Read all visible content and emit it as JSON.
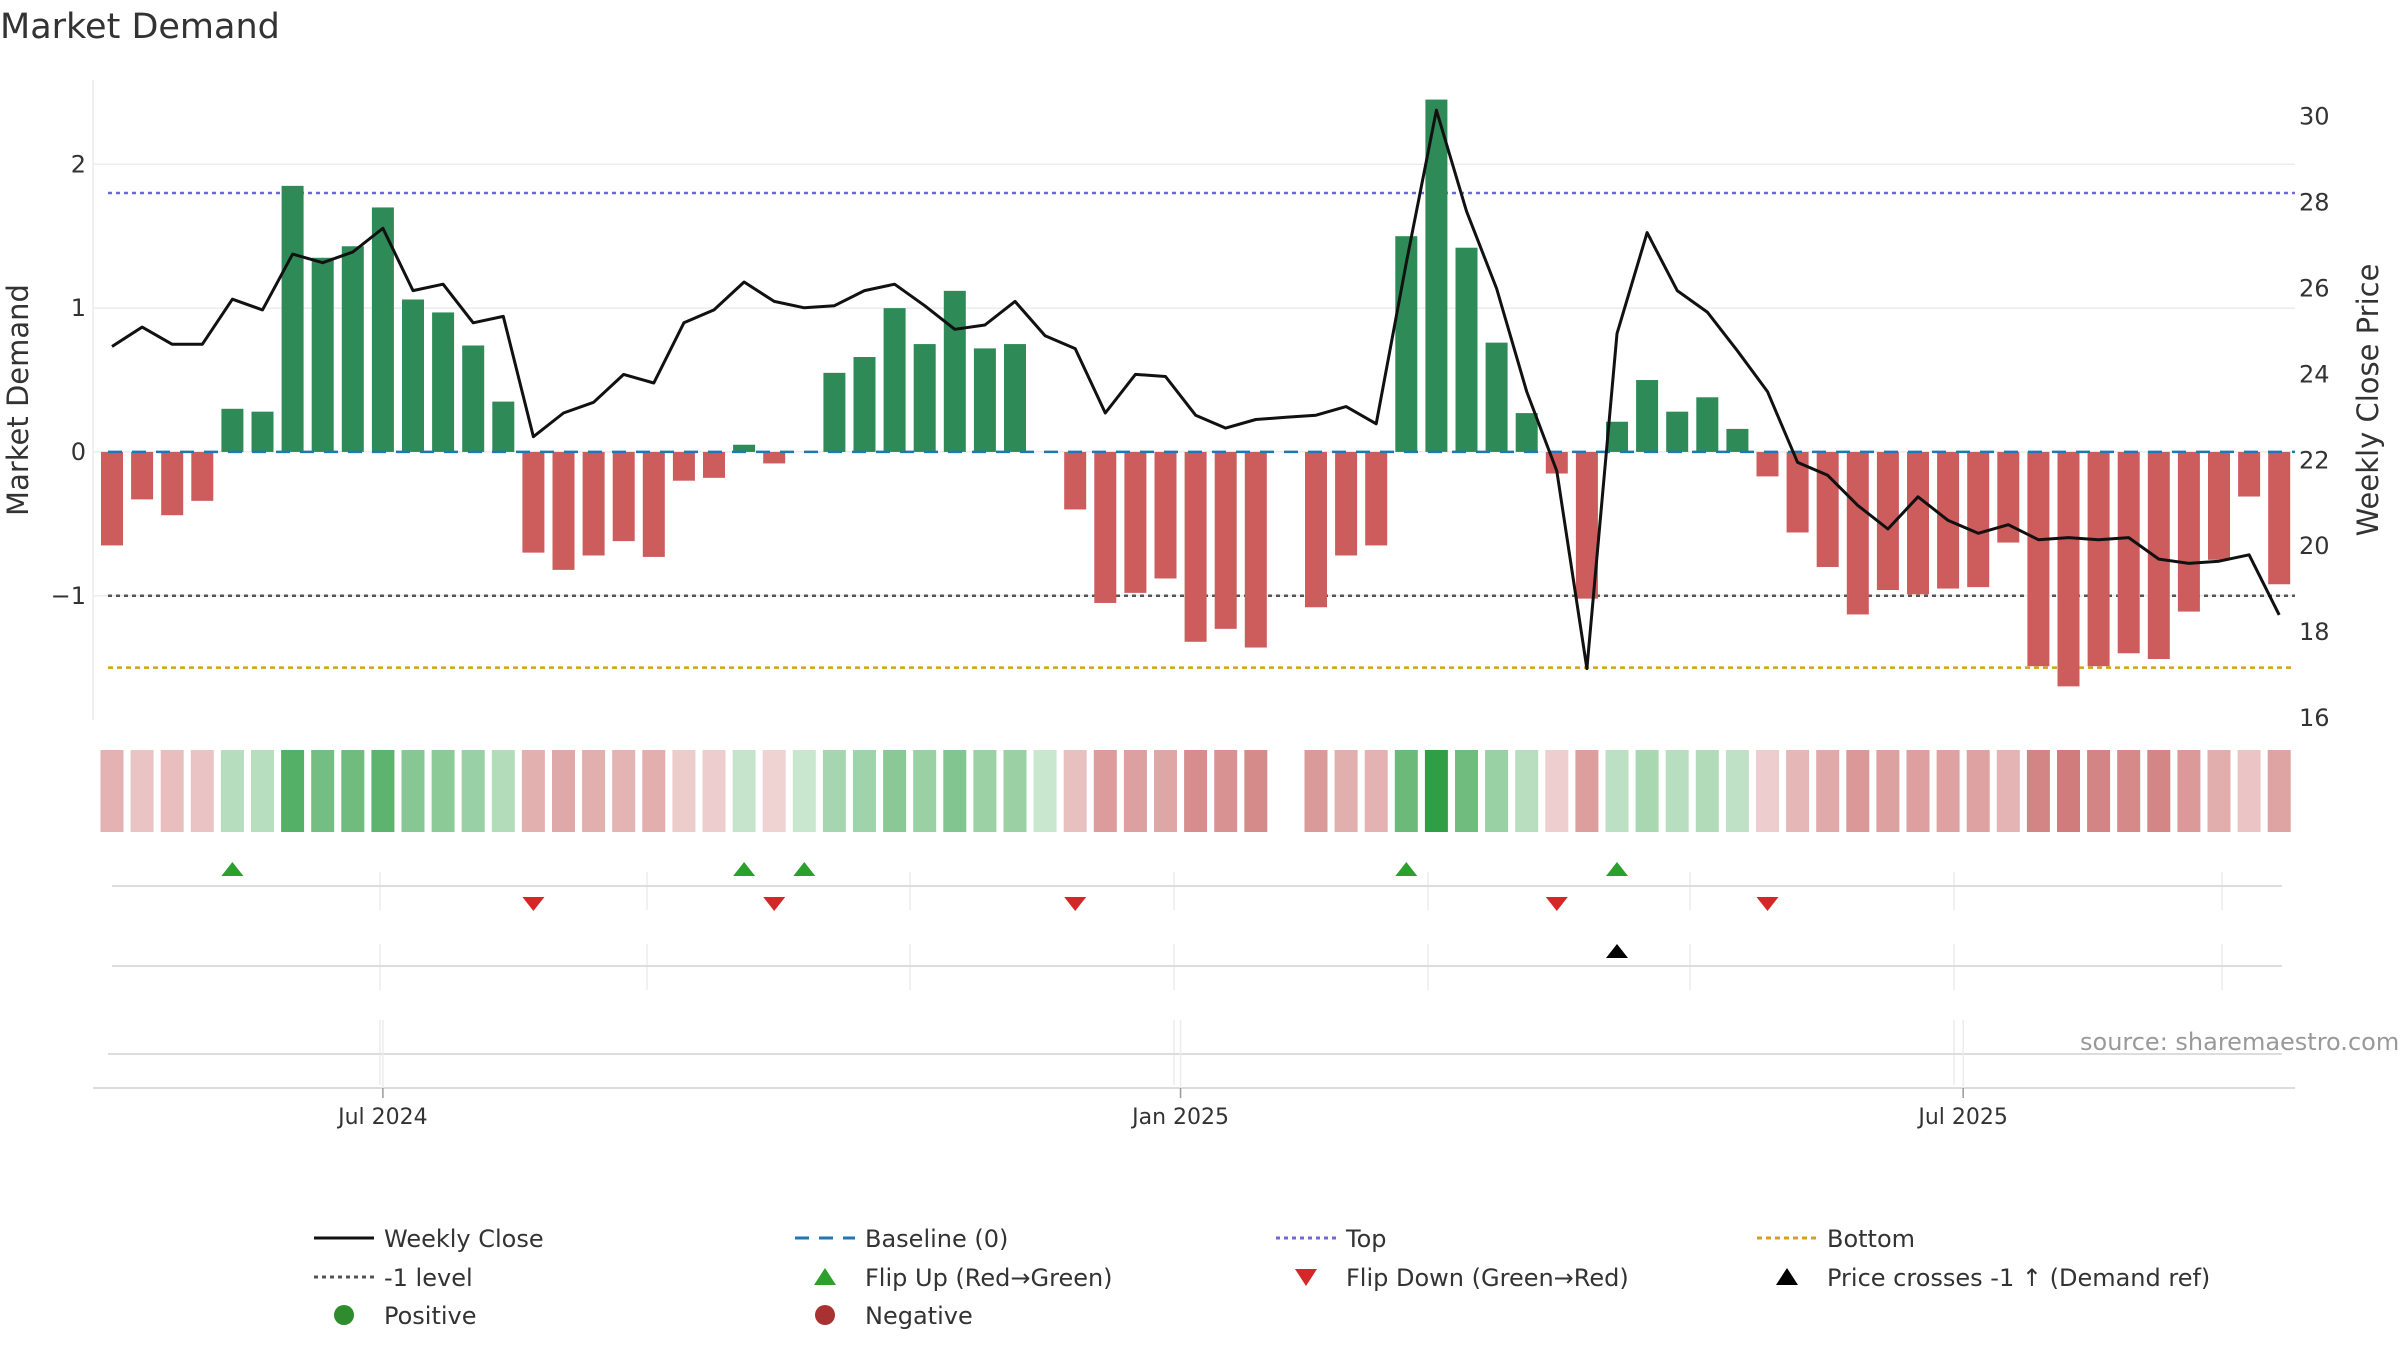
{
  "chart_data": {
    "type": "bar",
    "title": "Market Demand",
    "ylabel": "Market Demand",
    "y2label": "Weekly Close Price",
    "ylim": [
      -1.85,
      2.6
    ],
    "y2lim": [
      16,
      30.9
    ],
    "yticks": [
      {
        "v": 2,
        "label": "2"
      },
      {
        "v": 1,
        "label": "1"
      },
      {
        "v": 0,
        "label": "0"
      },
      {
        "v": -1,
        "label": "−1"
      }
    ],
    "y2ticks": [
      16,
      18,
      20,
      22,
      24,
      26,
      28,
      30
    ],
    "xticks": [
      {
        "week": 9,
        "label": "Jul 2024"
      },
      {
        "week": 35.5,
        "label": "Jan 2025"
      },
      {
        "week": 61.5,
        "label": "Jul 2025"
      }
    ],
    "reference_lines": {
      "top": 1.8,
      "bottom": -1.5,
      "minus_one": -1,
      "baseline": 0
    },
    "colors": {
      "positive": "#2e8b57",
      "negative": "#cd5c5c",
      "close": "#111111",
      "baseline": "#1f77b4",
      "top": "#6a6ad8",
      "bottom": "#d4a017",
      "minus_one": "#555555",
      "flip_up": "#2ca02c",
      "flip_down": "#d62728",
      "cross": "#000000",
      "legend_positive": "#2e8b2e",
      "legend_negative": "#a83232"
    },
    "series": [
      {
        "name": "Market Demand",
        "values": [
          -0.65,
          -0.33,
          -0.44,
          -0.34,
          0.3,
          0.28,
          1.85,
          1.35,
          1.43,
          1.7,
          1.06,
          0.97,
          0.74,
          0.35,
          -0.7,
          -0.82,
          -0.72,
          -0.62,
          -0.73,
          -0.2,
          -0.18,
          0.05,
          -0.08,
          0,
          0.55,
          0.66,
          1.0,
          0.75,
          1.12,
          0.72,
          0.75,
          0,
          -0.4,
          -1.05,
          -0.98,
          -0.88,
          -1.32,
          -1.23,
          -1.36,
          null,
          -1.08,
          -0.72,
          -0.65,
          1.5,
          2.45,
          1.42,
          0.76,
          0.27,
          -0.15,
          -1.02,
          0.21,
          0.5,
          0.28,
          0.38,
          0.16,
          -0.17,
          -0.56,
          -0.8,
          -1.13,
          -0.96,
          -0.99,
          -0.95,
          -0.94,
          -0.63,
          -1.49,
          -1.63,
          -1.49,
          -1.4,
          -1.44,
          -1.11,
          -0.75,
          -0.31,
          -0.92
        ]
      },
      {
        "name": "Weekly Close",
        "values": [
          24.65,
          25.1,
          24.7,
          24.7,
          25.75,
          25.5,
          26.8,
          26.6,
          26.85,
          27.4,
          25.95,
          26.1,
          25.2,
          25.35,
          22.55,
          23.1,
          23.35,
          24.0,
          23.8,
          25.2,
          25.5,
          26.15,
          25.7,
          25.55,
          25.6,
          25.95,
          26.1,
          25.6,
          25.05,
          25.15,
          25.7,
          24.9,
          24.6,
          23.1,
          24.0,
          23.95,
          23.05,
          22.75,
          22.95,
          23.0,
          23.05,
          23.25,
          22.85,
          26.6,
          30.15,
          27.8,
          26.0,
          23.6,
          21.75,
          17.15,
          24.95,
          27.3,
          25.95,
          25.45,
          24.55,
          23.6,
          21.95,
          21.65,
          20.95,
          20.4,
          21.15,
          20.6,
          20.3,
          20.5,
          20.15,
          20.2,
          20.15,
          20.2,
          19.7,
          19.6,
          19.65,
          19.8,
          18.4
        ]
      }
    ],
    "heatmap": {
      "name": "Demand strength strip"
    },
    "flip_up_weeks": [
      4,
      21,
      23,
      43,
      50
    ],
    "flip_down_weeks": [
      14,
      22,
      32,
      48,
      55
    ],
    "cross_weeks": [
      50
    ],
    "legend": [
      {
        "type": "line-solid",
        "label": "Weekly Close"
      },
      {
        "type": "line-dash",
        "label": "Baseline (0)"
      },
      {
        "type": "line-dot-blue",
        "label": "Top"
      },
      {
        "type": "line-dot-gold",
        "label": "Bottom"
      },
      {
        "type": "line-dot-grey",
        "label": "-1 level"
      },
      {
        "type": "tri-up-green",
        "label": "Flip Up (Red→Green)"
      },
      {
        "type": "tri-down-red",
        "label": "Flip Down (Green→Red)"
      },
      {
        "type": "tri-up-black",
        "label": "Price crosses -1 ↑ (Demand ref)"
      },
      {
        "type": "dot-green",
        "label": "Positive"
      },
      {
        "type": "dot-red",
        "label": "Negative"
      }
    ]
  },
  "source": "source: sharemaestro.com"
}
